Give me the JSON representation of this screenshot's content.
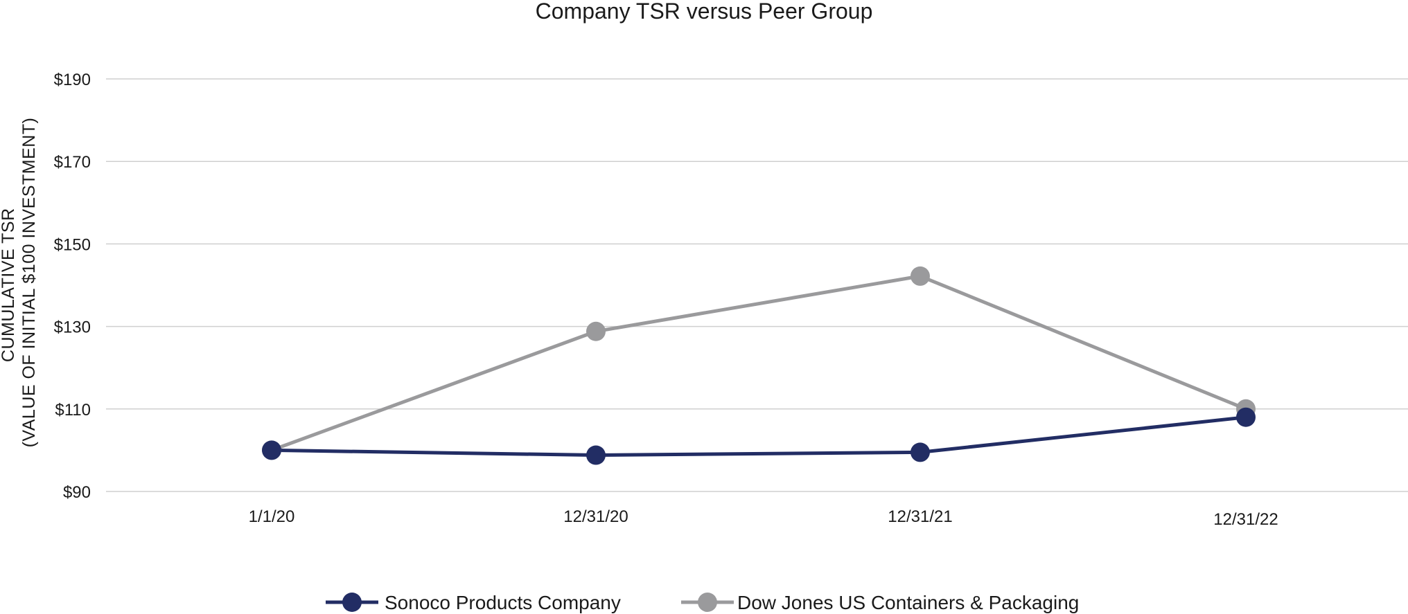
{
  "chart_data": {
    "type": "line",
    "title": "Company TSR versus Peer Group",
    "xlabel": "",
    "ylabel_line1": "CUMULATIVE TSR",
    "ylabel_line2": "(VALUE OF INITIAL $100 INVESTMENT)",
    "categories": [
      "1/1/20",
      "12/31/20",
      "12/31/21",
      "12/31/22"
    ],
    "y_ticks": [
      90,
      110,
      130,
      150,
      170,
      190
    ],
    "y_tick_labels": [
      "$90",
      "$110",
      "$130",
      "$150",
      "$170",
      "$190"
    ],
    "ylim": [
      90,
      190
    ],
    "grid": true,
    "legend_position": "bottom-center",
    "series": [
      {
        "name": "Sonoco Products Company",
        "color": "#222d64",
        "values": [
          100,
          98.8,
          99.5,
          108
        ]
      },
      {
        "name": "Dow Jones US Containers & Packaging",
        "color": "#9a9a9c",
        "values": [
          100,
          128.8,
          142.2,
          110
        ]
      }
    ],
    "gridline_color": "#cfcfcf"
  }
}
